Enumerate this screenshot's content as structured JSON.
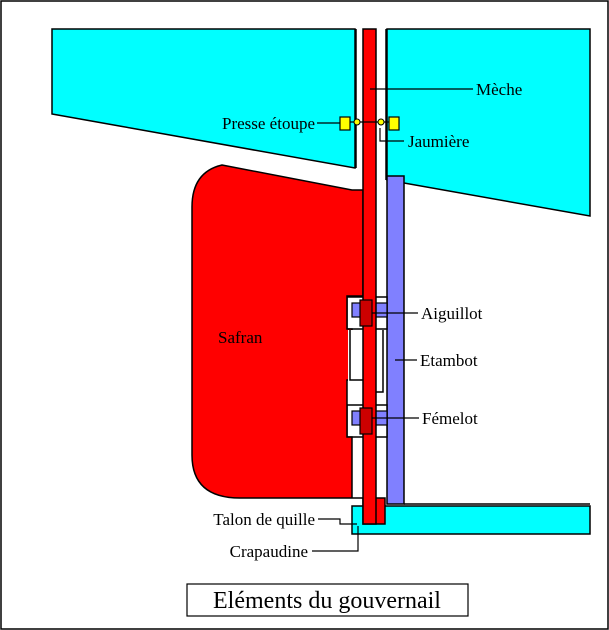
{
  "diagram": {
    "title": "Eléments du gouvernail",
    "labels": {
      "meche": "Mèche",
      "presse_etoupe": "Presse étoupe",
      "jaumiere": "Jaumière",
      "safran": "Safran",
      "aiguillot": "Aiguillot",
      "etambot": "Etambot",
      "femelot": "Fémelot",
      "talon": "Talon de quille",
      "crapaudine": "Crapaudine"
    }
  },
  "colors": {
    "hull": "#00ffff",
    "rudder": "#ff0000",
    "sternpost": "#8080ff",
    "gland": "#ffff00",
    "pin": "#cc0000",
    "background": "#ffffff",
    "outline": "#000000"
  }
}
